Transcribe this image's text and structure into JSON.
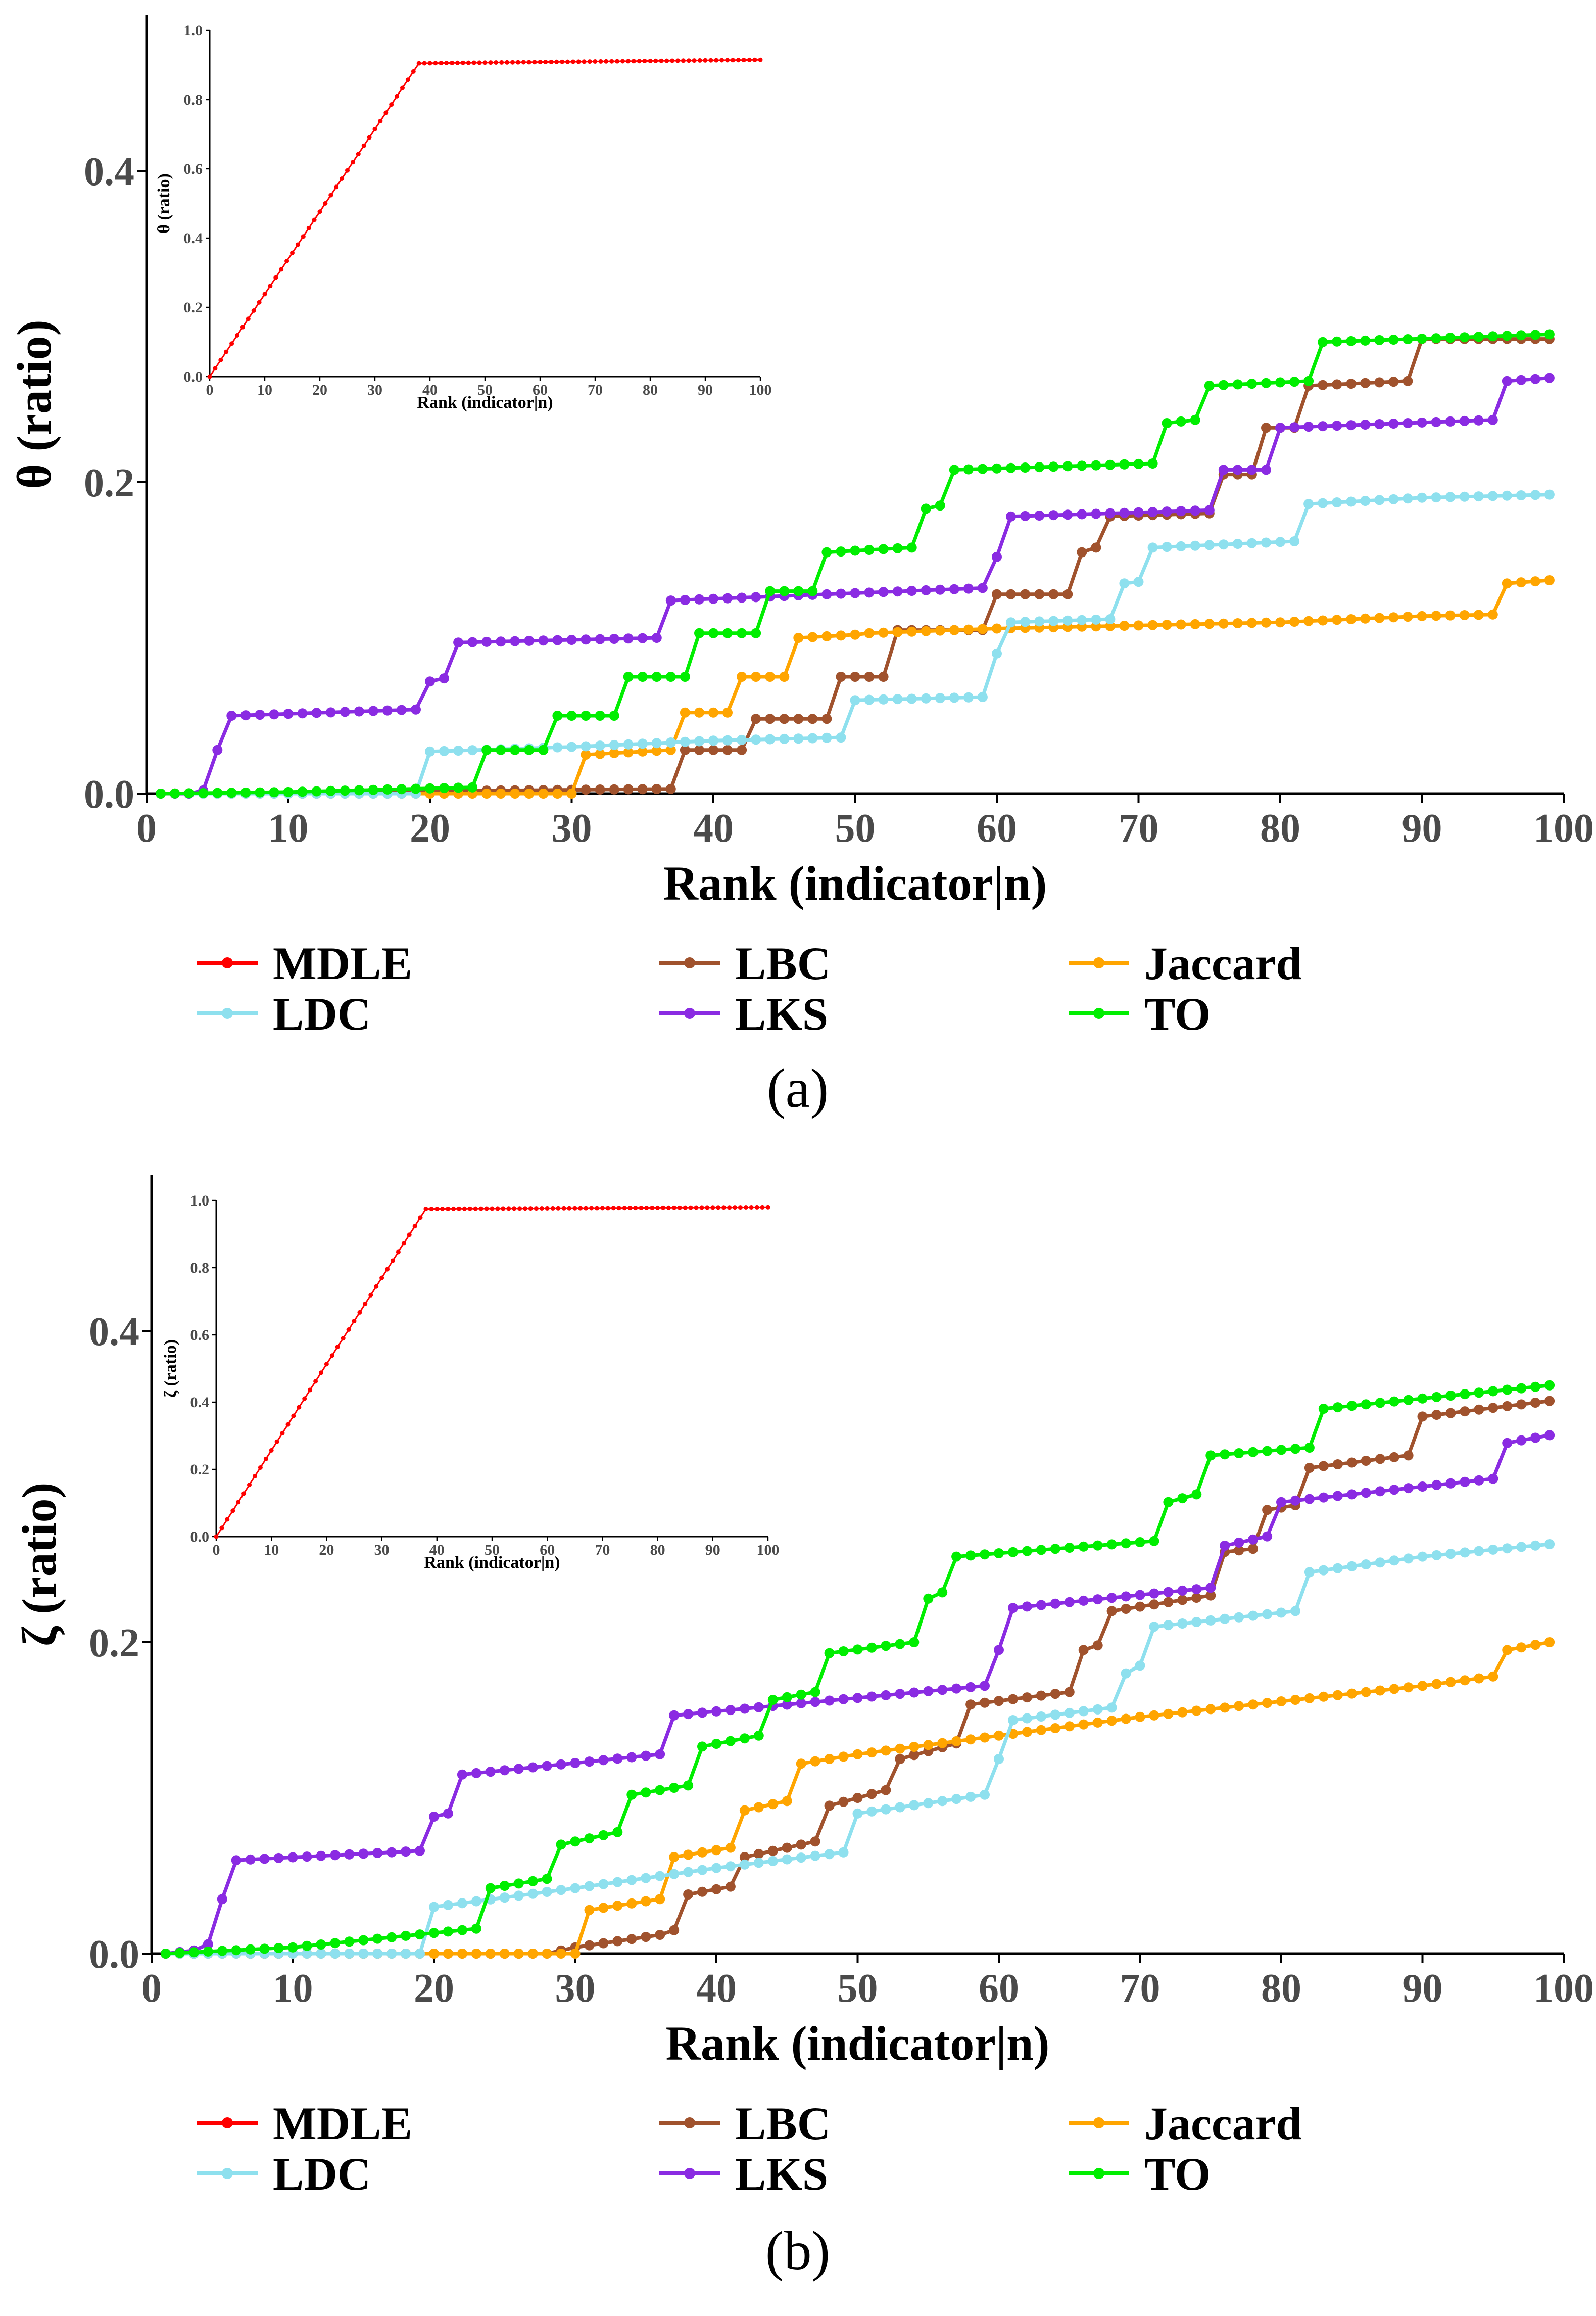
{
  "figure": {
    "legend_labels": [
      "MDLE",
      "LBC",
      "Jaccard",
      "LDC",
      "LKS",
      "TO"
    ],
    "colors": {
      "MDLE": "#ff0000",
      "LBC": "#a0522d",
      "Jaccard": "#ffa500",
      "LDC": "#8ee0ee",
      "LKS": "#8a2be2",
      "TO": "#00ee00"
    }
  },
  "chart_data": [
    {
      "type": "line",
      "panel_caption": "(a)",
      "xlabel": "Rank (indicator|n)",
      "ylabel": "θ (ratio)",
      "xlim": [
        0,
        100
      ],
      "ylim": [
        0,
        0.5
      ],
      "xticks": [
        "0",
        "10",
        "20",
        "30",
        "40",
        "50",
        "60",
        "70",
        "80",
        "90",
        "100"
      ],
      "yticks": [
        "0.0",
        "0.2",
        "0.4"
      ],
      "series": [
        {
          "name": "LBC",
          "points": [
            [
              1,
              0
            ],
            [
              37,
              0.003
            ],
            [
              38,
              0.028
            ],
            [
              42,
              0.028
            ],
            [
              43,
              0.048
            ],
            [
              48,
              0.048
            ],
            [
              49,
              0.075
            ],
            [
              52,
              0.075
            ],
            [
              53,
              0.105
            ],
            [
              59,
              0.105
            ],
            [
              60,
              0.128
            ],
            [
              65,
              0.128
            ],
            [
              66,
              0.155
            ],
            [
              67,
              0.158
            ],
            [
              68,
              0.178
            ],
            [
              75,
              0.18
            ],
            [
              76,
              0.205
            ],
            [
              78,
              0.205
            ],
            [
              79,
              0.235
            ],
            [
              81,
              0.235
            ],
            [
              82,
              0.262
            ],
            [
              89,
              0.265
            ],
            [
              90,
              0.292
            ],
            [
              99,
              0.292
            ]
          ]
        },
        {
          "name": "Jaccard",
          "points": [
            [
              1,
              0
            ],
            [
              30,
              0
            ],
            [
              31,
              0.025
            ],
            [
              37,
              0.028
            ],
            [
              38,
              0.052
            ],
            [
              41,
              0.052
            ],
            [
              42,
              0.075
            ],
            [
              45,
              0.075
            ],
            [
              46,
              0.1
            ],
            [
              50,
              0.102
            ],
            [
              51,
              0.103
            ],
            [
              54,
              0.104
            ],
            [
              60,
              0.106
            ],
            [
              70,
              0.108
            ],
            [
              80,
              0.11
            ],
            [
              90,
              0.114
            ],
            [
              95,
              0.115
            ],
            [
              96,
              0.135
            ],
            [
              99,
              0.137
            ]
          ]
        },
        {
          "name": "LDC",
          "points": [
            [
              1,
              0
            ],
            [
              19,
              0
            ],
            [
              20,
              0.027
            ],
            [
              30,
              0.03
            ],
            [
              40,
              0.034
            ],
            [
              49,
              0.036
            ],
            [
              50,
              0.06
            ],
            [
              59,
              0.062
            ],
            [
              60,
              0.09
            ],
            [
              61,
              0.11
            ],
            [
              68,
              0.112
            ],
            [
              69,
              0.135
            ],
            [
              70,
              0.136
            ],
            [
              71,
              0.158
            ],
            [
              81,
              0.162
            ],
            [
              82,
              0.186
            ],
            [
              90,
              0.19
            ],
            [
              99,
              0.192
            ]
          ]
        },
        {
          "name": "LKS",
          "points": [
            [
              1,
              0
            ],
            [
              3,
              0
            ],
            [
              4,
              0.002
            ],
            [
              5,
              0.028
            ],
            [
              6,
              0.05
            ],
            [
              19,
              0.054
            ],
            [
              20,
              0.072
            ],
            [
              21,
              0.074
            ],
            [
              22,
              0.097
            ],
            [
              36,
              0.1
            ],
            [
              37,
              0.124
            ],
            [
              59,
              0.132
            ],
            [
              60,
              0.152
            ],
            [
              61,
              0.178
            ],
            [
              75,
              0.182
            ],
            [
              76,
              0.208
            ],
            [
              79,
              0.208
            ],
            [
              80,
              0.235
            ],
            [
              95,
              0.24
            ],
            [
              96,
              0.265
            ],
            [
              99,
              0.267
            ]
          ]
        },
        {
          "name": "TO",
          "points": [
            [
              1,
              0
            ],
            [
              10,
              0.001
            ],
            [
              23,
              0.004
            ],
            [
              24,
              0.028
            ],
            [
              28,
              0.028
            ],
            [
              29,
              0.05
            ],
            [
              33,
              0.05
            ],
            [
              34,
              0.075
            ],
            [
              38,
              0.075
            ],
            [
              39,
              0.103
            ],
            [
              43,
              0.103
            ],
            [
              44,
              0.13
            ],
            [
              47,
              0.13
            ],
            [
              48,
              0.155
            ],
            [
              54,
              0.158
            ],
            [
              55,
              0.183
            ],
            [
              56,
              0.185
            ],
            [
              57,
              0.208
            ],
            [
              71,
              0.212
            ],
            [
              72,
              0.238
            ],
            [
              74,
              0.24
            ],
            [
              75,
              0.262
            ],
            [
              82,
              0.265
            ],
            [
              83,
              0.29
            ],
            [
              99,
              0.295
            ]
          ]
        }
      ],
      "inset": {
        "xlabel": "Rank (indicator|n)",
        "ylabel": "θ (ratio)",
        "xlim": [
          0,
          100
        ],
        "ylim": [
          0,
          1.0
        ],
        "xticks": [
          "0",
          "10",
          "20",
          "30",
          "40",
          "50",
          "60",
          "70",
          "80",
          "90",
          "100"
        ],
        "yticks": [
          "0.0",
          "0.2",
          "0.4",
          "0.6",
          "0.8",
          "1.0"
        ],
        "series": [
          {
            "name": "MDLE",
            "points": [
              [
                0,
                0
              ],
              [
                38,
                0.905
              ],
              [
                100,
                0.915
              ]
            ]
          }
        ]
      }
    },
    {
      "type": "line",
      "panel_caption": "(b)",
      "xlabel": "Rank (indicator|n)",
      "ylabel": "ζ (ratio)",
      "xlim": [
        0,
        100
      ],
      "ylim": [
        0,
        0.5
      ],
      "xticks": [
        "0",
        "10",
        "20",
        "30",
        "40",
        "50",
        "60",
        "70",
        "80",
        "90",
        "100"
      ],
      "yticks": [
        "0.0",
        "0.2",
        "0.4"
      ],
      "series": [
        {
          "name": "LBC",
          "points": [
            [
              1,
              0
            ],
            [
              28,
              0
            ],
            [
              30,
              0.004
            ],
            [
              36,
              0.012
            ],
            [
              37,
              0.015
            ],
            [
              38,
              0.038
            ],
            [
              41,
              0.043
            ],
            [
              42,
              0.062
            ],
            [
              47,
              0.072
            ],
            [
              48,
              0.095
            ],
            [
              52,
              0.105
            ],
            [
              53,
              0.125
            ],
            [
              57,
              0.135
            ],
            [
              58,
              0.16
            ],
            [
              65,
              0.168
            ],
            [
              66,
              0.195
            ],
            [
              67,
              0.198
            ],
            [
              68,
              0.22
            ],
            [
              75,
              0.23
            ],
            [
              76,
              0.258
            ],
            [
              78,
              0.26
            ],
            [
              79,
              0.285
            ],
            [
              81,
              0.288
            ],
            [
              82,
              0.312
            ],
            [
              89,
              0.32
            ],
            [
              90,
              0.345
            ],
            [
              99,
              0.355
            ]
          ]
        },
        {
          "name": "Jaccard",
          "points": [
            [
              1,
              0
            ],
            [
              30,
              0
            ],
            [
              31,
              0.028
            ],
            [
              36,
              0.035
            ],
            [
              37,
              0.062
            ],
            [
              41,
              0.068
            ],
            [
              42,
              0.092
            ],
            [
              45,
              0.098
            ],
            [
              46,
              0.122
            ],
            [
              50,
              0.128
            ],
            [
              60,
              0.14
            ],
            [
              70,
              0.152
            ],
            [
              80,
              0.162
            ],
            [
              90,
              0.172
            ],
            [
              95,
              0.178
            ],
            [
              96,
              0.195
            ],
            [
              99,
              0.2
            ]
          ]
        },
        {
          "name": "LDC",
          "points": [
            [
              1,
              0
            ],
            [
              19,
              0
            ],
            [
              20,
              0.03
            ],
            [
              30,
              0.042
            ],
            [
              40,
              0.055
            ],
            [
              49,
              0.065
            ],
            [
              50,
              0.09
            ],
            [
              59,
              0.102
            ],
            [
              60,
              0.125
            ],
            [
              61,
              0.15
            ],
            [
              68,
              0.158
            ],
            [
              69,
              0.18
            ],
            [
              70,
              0.185
            ],
            [
              71,
              0.21
            ],
            [
              81,
              0.22
            ],
            [
              82,
              0.245
            ],
            [
              90,
              0.255
            ],
            [
              99,
              0.263
            ]
          ]
        },
        {
          "name": "LKS",
          "points": [
            [
              1,
              0
            ],
            [
              3,
              0.002
            ],
            [
              4,
              0.006
            ],
            [
              5,
              0.035
            ],
            [
              6,
              0.06
            ],
            [
              19,
              0.066
            ],
            [
              20,
              0.088
            ],
            [
              21,
              0.09
            ],
            [
              22,
              0.115
            ],
            [
              36,
              0.128
            ],
            [
              37,
              0.153
            ],
            [
              59,
              0.172
            ],
            [
              60,
              0.195
            ],
            [
              61,
              0.222
            ],
            [
              75,
              0.235
            ],
            [
              76,
              0.262
            ],
            [
              79,
              0.268
            ],
            [
              80,
              0.29
            ],
            [
              95,
              0.305
            ],
            [
              96,
              0.328
            ],
            [
              99,
              0.333
            ]
          ]
        },
        {
          "name": "TO",
          "points": [
            [
              1,
              0
            ],
            [
              10,
              0.004
            ],
            [
              23,
              0.016
            ],
            [
              24,
              0.042
            ],
            [
              28,
              0.048
            ],
            [
              29,
              0.07
            ],
            [
              33,
              0.078
            ],
            [
              34,
              0.102
            ],
            [
              38,
              0.108
            ],
            [
              39,
              0.133
            ],
            [
              43,
              0.14
            ],
            [
              44,
              0.163
            ],
            [
              47,
              0.168
            ],
            [
              48,
              0.193
            ],
            [
              54,
              0.2
            ],
            [
              55,
              0.228
            ],
            [
              56,
              0.232
            ],
            [
              57,
              0.255
            ],
            [
              71,
              0.265
            ],
            [
              72,
              0.29
            ],
            [
              74,
              0.295
            ],
            [
              75,
              0.32
            ],
            [
              82,
              0.325
            ],
            [
              83,
              0.35
            ],
            [
              99,
              0.365
            ]
          ]
        }
      ],
      "inset": {
        "xlabel": "Rank (indicator|n)",
        "ylabel": "ζ (ratio)",
        "xlim": [
          0,
          100
        ],
        "ylim": [
          0,
          1.0
        ],
        "xticks": [
          "0",
          "10",
          "20",
          "30",
          "40",
          "50",
          "60",
          "70",
          "80",
          "90",
          "100"
        ],
        "yticks": [
          "0.0",
          "0.2",
          "0.4",
          "0.6",
          "0.8",
          "1.0"
        ],
        "series": [
          {
            "name": "MDLE",
            "points": [
              [
                0,
                0
              ],
              [
                38,
                0.975
              ],
              [
                100,
                0.98
              ]
            ]
          }
        ]
      }
    }
  ]
}
